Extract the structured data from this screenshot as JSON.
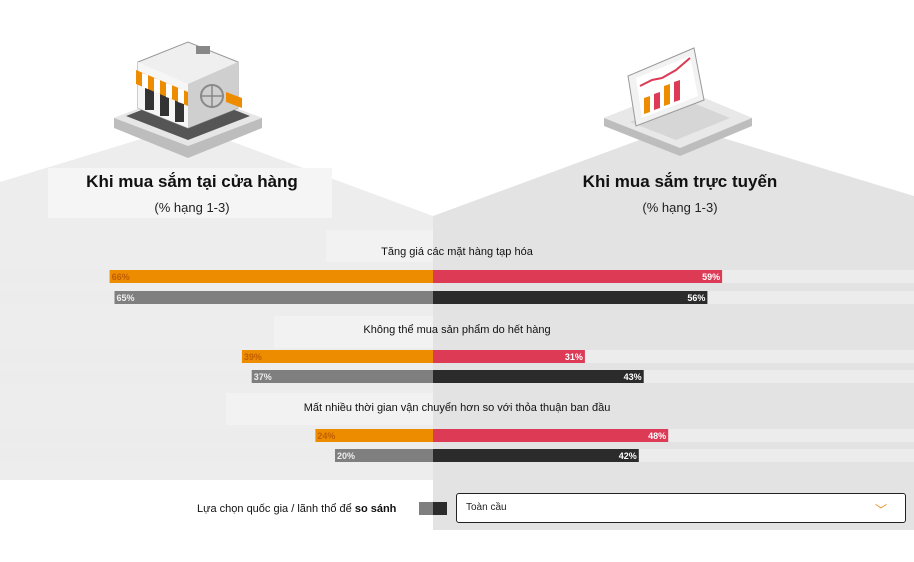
{
  "left_panel": {
    "title": "Khi mua sắm tại cửa hàng",
    "subtitle": "(% hạng 1-3)"
  },
  "right_panel": {
    "title": "Khi mua sắm trực tuyến",
    "subtitle": "(% hạng 1-3)"
  },
  "icons": {
    "left": "storefront-icon",
    "right": "laptop-chart-icon"
  },
  "colors": {
    "store_selected": "#ee8c00",
    "store_global": "#7f7f7f",
    "online_selected": "#dc3a55",
    "online_global": "#2b2b2b",
    "track": "#ececec",
    "bg_panel": "#e8e8e8"
  },
  "selector": {
    "label_prefix": "Lựa chọn quốc gia / lãnh thổ để ",
    "label_bold": "so sánh",
    "value": "Toàn cầu",
    "chevron": "chevron-down-icon"
  },
  "chart_data": {
    "type": "bar",
    "categories": [
      "Tăng giá các mặt hàng tạp hóa",
      "Không thể mua sản phẩm do hết hàng",
      "Mất nhiều thời gian vận chuyển hơn so với thỏa thuận ban đầu"
    ],
    "unit": "%",
    "series": [
      {
        "panel": "store",
        "values": [
          66,
          39,
          24
        ]
      },
      {
        "panel": "store",
        "values": [
          65,
          37,
          20
        ]
      },
      {
        "panel": "online",
        "values": [
          59,
          31,
          48
        ]
      },
      {
        "panel": "online",
        "values": [
          56,
          43,
          42
        ]
      }
    ],
    "xlim": [
      0,
      100
    ]
  }
}
